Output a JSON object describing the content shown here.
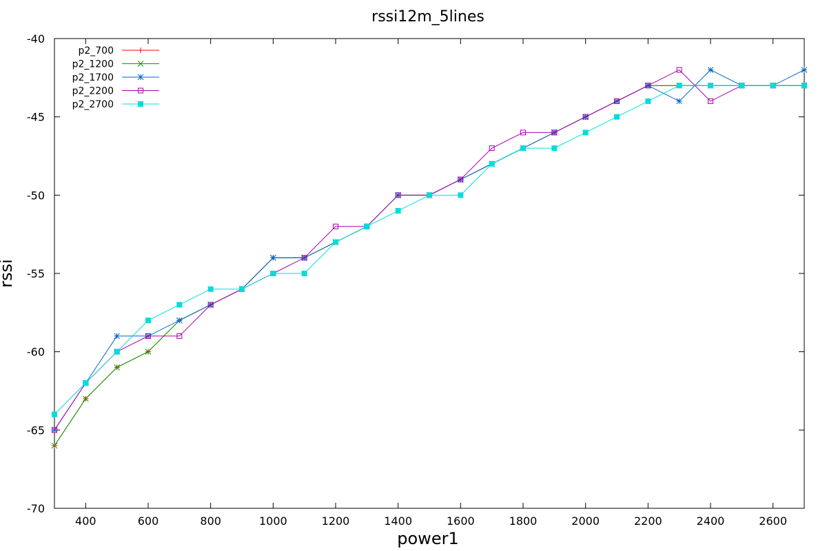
{
  "chart_data": {
    "type": "line",
    "title": "rssi12m_5lines",
    "xlabel": "power1",
    "ylabel": "rssi",
    "xlim": [
      300,
      2700
    ],
    "ylim": [
      -70,
      -40
    ],
    "x_ticks": [
      400,
      600,
      800,
      1000,
      1200,
      1400,
      1600,
      1800,
      2000,
      2200,
      2400,
      2600
    ],
    "y_ticks": [
      -40,
      -45,
      -50,
      -55,
      -60,
      -65,
      -70
    ],
    "grid": false,
    "legend_position": "top-left",
    "x": [
      300,
      400,
      500,
      600,
      700,
      800,
      900,
      1000,
      1100,
      1200,
      1300,
      1400,
      1500,
      1600,
      1700,
      1800,
      1900,
      2000,
      2100,
      2200,
      2300,
      2400,
      2500,
      2600,
      2700
    ],
    "series": [
      {
        "name": "p2_700",
        "color": "#ff0000",
        "marker": "plus",
        "values": [
          -66,
          -63,
          -61,
          -60,
          -58,
          -57,
          -56,
          -54,
          -54,
          -53,
          -52,
          -50,
          -50,
          -49,
          -48,
          -47,
          -46,
          -45,
          -44,
          -43,
          -43,
          -43,
          -43,
          -43,
          -43
        ]
      },
      {
        "name": "p2_1200",
        "color": "#00a000",
        "marker": "cross",
        "values": [
          -66,
          -63,
          -61,
          -60,
          -58,
          -57,
          -56,
          -54,
          -54,
          -53,
          -52,
          -50,
          -50,
          -49,
          -48,
          -47,
          -46,
          -45,
          -44,
          -43,
          -43,
          -43,
          -43,
          -43,
          -43
        ]
      },
      {
        "name": "p2_1700",
        "color": "#0066cc",
        "marker": "star",
        "values": [
          -65,
          -62,
          -59,
          -59,
          -58,
          -57,
          -56,
          -54,
          -54,
          -53,
          -52,
          -50,
          -50,
          -49,
          -48,
          -47,
          -46,
          -45,
          -44,
          -43,
          -44,
          -42,
          -43,
          -43,
          -42
        ]
      },
      {
        "name": "p2_2200",
        "color": "#aa00aa",
        "marker": "square-open",
        "values": [
          -65,
          -62,
          -60,
          -59,
          -59,
          -57,
          -56,
          -55,
          -54,
          -52,
          -52,
          -50,
          -50,
          -49,
          -47,
          -46,
          -46,
          -45,
          -44,
          -43,
          -42,
          -44,
          -43,
          -43,
          -43
        ]
      },
      {
        "name": "p2_2700",
        "color": "#00dddd",
        "marker": "square-filled",
        "values": [
          -64,
          -62,
          -60,
          -58,
          -57,
          -56,
          -56,
          -55,
          -55,
          -53,
          -52,
          -51,
          -50,
          -50,
          -48,
          -47,
          -47,
          -46,
          -45,
          -44,
          -43,
          -43,
          -43,
          -43,
          -43
        ]
      }
    ]
  }
}
